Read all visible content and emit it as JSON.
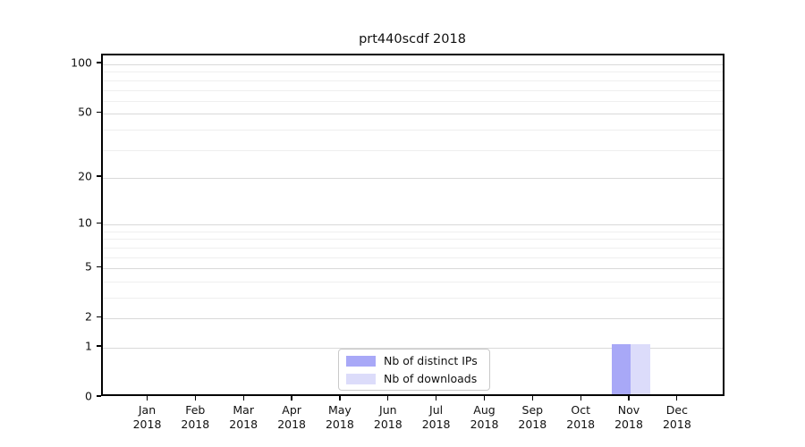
{
  "chart_data": {
    "type": "bar",
    "title": "prt440scdf 2018",
    "x_categories": [
      {
        "month": "Jan",
        "year": "2018"
      },
      {
        "month": "Feb",
        "year": "2018"
      },
      {
        "month": "Mar",
        "year": "2018"
      },
      {
        "month": "Apr",
        "year": "2018"
      },
      {
        "month": "May",
        "year": "2018"
      },
      {
        "month": "Jun",
        "year": "2018"
      },
      {
        "month": "Jul",
        "year": "2018"
      },
      {
        "month": "Aug",
        "year": "2018"
      },
      {
        "month": "Sep",
        "year": "2018"
      },
      {
        "month": "Oct",
        "year": "2018"
      },
      {
        "month": "Nov",
        "year": "2018"
      },
      {
        "month": "Dec",
        "year": "2018"
      }
    ],
    "series": [
      {
        "name": "Nb of distinct IPs",
        "color": "#a8a8f7",
        "values": [
          0,
          0,
          0,
          0,
          0,
          0,
          0,
          0,
          0,
          0,
          1,
          0
        ]
      },
      {
        "name": "Nb of downloads",
        "color": "#dcdcfa",
        "values": [
          0,
          0,
          0,
          0,
          0,
          0,
          0,
          0,
          0,
          0,
          1,
          0
        ]
      }
    ],
    "y_ticks": [
      0,
      1,
      2,
      5,
      10,
      20,
      50,
      100
    ],
    "y_minor_ticks": [
      3,
      4,
      6,
      7,
      8,
      9,
      30,
      40,
      60,
      70,
      80,
      90
    ],
    "y_scale": "log1p",
    "ylim": [
      0,
      113
    ],
    "xlabel": "",
    "ylabel": "",
    "grid": true,
    "legend_position": "bottom-center",
    "colors": {
      "axis_line": "#000000",
      "grid_major": "#d9d9d9",
      "grid_minor": "#efefef",
      "background": "#ffffff"
    }
  }
}
